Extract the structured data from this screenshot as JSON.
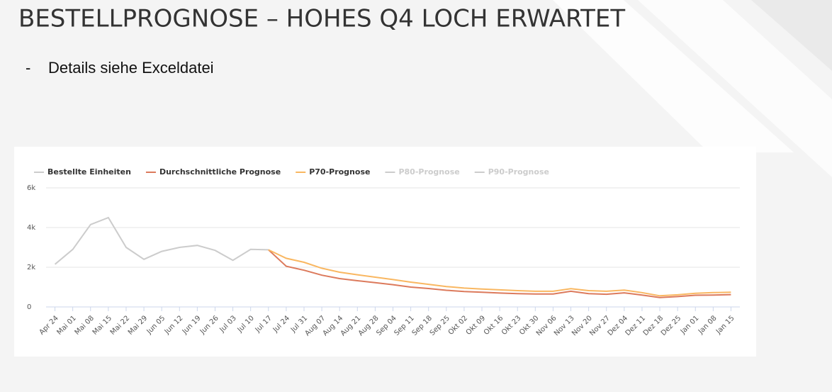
{
  "title": "BESTELLPROGNOSE – HOHES Q4 LOCH ERWARTET",
  "bullet": "Details siehe Exceldatei",
  "chart_data": {
    "type": "line",
    "categories": [
      "Apr 24",
      "Mai 01",
      "Mai 08",
      "Mai 15",
      "Mai 22",
      "Mai 29",
      "Jun 05",
      "Jun 12",
      "Jun 19",
      "Jun 26",
      "Jul 03",
      "Jul 10",
      "Jul 17",
      "Jul 24",
      "Jul 31",
      "Aug 07",
      "Aug 14",
      "Aug 21",
      "Aug 28",
      "Sep 04",
      "Sep 11",
      "Sep 18",
      "Sep 25",
      "Okt 02",
      "Okt 09",
      "Okt 16",
      "Okt 23",
      "Okt 30",
      "Nov 06",
      "Nov 13",
      "Nov 20",
      "Nov 27",
      "Dez 04",
      "Dez 11",
      "Dez 18",
      "Dez 25",
      "Jan 01",
      "Jan 08",
      "Jan 15"
    ],
    "series": [
      {
        "name": "Bestellte Einheiten",
        "color": "#cccccc",
        "visible": true,
        "values": [
          2150,
          2900,
          4150,
          4500,
          3000,
          2400,
          2800,
          3000,
          3100,
          2850,
          2350,
          2900,
          2880,
          null,
          null,
          null,
          null,
          null,
          null,
          null,
          null,
          null,
          null,
          null,
          null,
          null,
          null,
          null,
          null,
          null,
          null,
          null,
          null,
          null,
          null,
          null,
          null,
          null,
          null
        ]
      },
      {
        "name": "Durchschnittliche Prognose",
        "color": "#dc7a5c",
        "visible": true,
        "values": [
          null,
          null,
          null,
          null,
          null,
          null,
          null,
          null,
          null,
          null,
          null,
          null,
          2880,
          2050,
          1850,
          1600,
          1430,
          1320,
          1220,
          1120,
          1000,
          930,
          840,
          780,
          740,
          700,
          670,
          650,
          650,
          790,
          670,
          640,
          710,
          600,
          470,
          520,
          590,
          600,
          620
        ]
      },
      {
        "name": "P70-Prognose",
        "color": "#f9b761",
        "visible": true,
        "values": [
          null,
          null,
          null,
          null,
          null,
          null,
          null,
          null,
          null,
          null,
          null,
          null,
          2880,
          2450,
          2250,
          1950,
          1750,
          1620,
          1500,
          1380,
          1250,
          1140,
          1030,
          950,
          900,
          860,
          820,
          790,
          790,
          920,
          820,
          790,
          850,
          720,
          560,
          610,
          690,
          720,
          740
        ]
      },
      {
        "name": "P80-Prognose",
        "color": "#cccccc",
        "visible": false,
        "values": [
          null,
          null,
          null,
          null,
          null,
          null,
          null,
          null,
          null,
          null,
          null,
          null,
          null,
          null,
          null,
          null,
          null,
          null,
          null,
          null,
          null,
          null,
          null,
          null,
          null,
          null,
          null,
          null,
          null,
          null,
          null,
          null,
          null,
          null,
          null,
          null,
          null,
          null,
          null
        ]
      },
      {
        "name": "P90-Prognose",
        "color": "#cccccc",
        "visible": false,
        "values": [
          null,
          null,
          null,
          null,
          null,
          null,
          null,
          null,
          null,
          null,
          null,
          null,
          null,
          null,
          null,
          null,
          null,
          null,
          null,
          null,
          null,
          null,
          null,
          null,
          null,
          null,
          null,
          null,
          null,
          null,
          null,
          null,
          null,
          null,
          null,
          null,
          null,
          null,
          null
        ]
      }
    ],
    "ylim": [
      0,
      6000
    ],
    "yticks": [
      0,
      {
        "value": 2000,
        "label": "2k"
      },
      {
        "value": 4000,
        "label": "4k"
      },
      {
        "value": 6000,
        "label": "6k"
      }
    ],
    "grid": true,
    "legend": "top-left"
  }
}
